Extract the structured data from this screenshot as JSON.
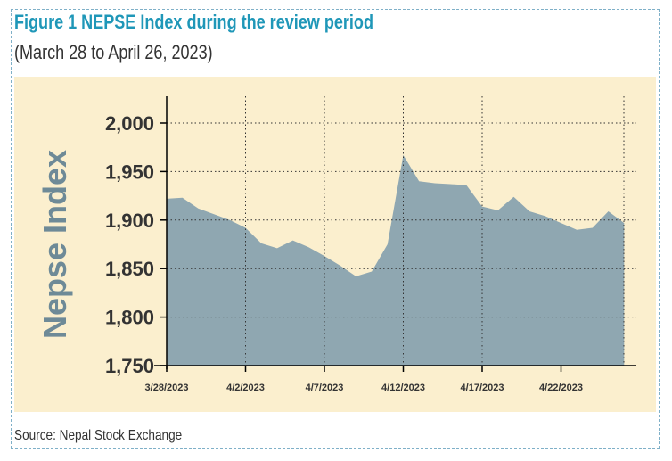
{
  "figure": {
    "title": "Figure 1 NEPSE Index during the review period",
    "subtitle": "(March 28 to April 26, 2023)",
    "source": "Source: Nepal Stock Exchange"
  },
  "colors": {
    "title": "#1f97b8",
    "panel_background": "#fbefce",
    "area_fill": "#8fa7b1",
    "ylabel": "#6e8a97",
    "border": "#7fb0c8"
  },
  "chart_data": {
    "type": "area",
    "ylabel": "Nepse Index",
    "xlabel": "",
    "ylim": [
      1750,
      2000
    ],
    "yticks": [
      1750,
      1800,
      1850,
      1900,
      1950,
      2000
    ],
    "ytick_labels": [
      "1,750",
      "1,800",
      "1,850",
      "1,900",
      "1,950",
      "2,000"
    ],
    "xtick_labels": [
      "3/28/2023",
      "4/2/2023",
      "4/7/2023",
      "4/12/2023",
      "4/17/2023",
      "4/22/2023"
    ],
    "xtick_dates": [
      "2023-03-28",
      "2023-04-02",
      "2023-04-07",
      "2023-04-12",
      "2023-04-17",
      "2023-04-22"
    ],
    "grid": "dotted",
    "series": [
      {
        "x": [
          "2023-03-28",
          "2023-03-29",
          "2023-03-30",
          "2023-03-31",
          "2023-04-01",
          "2023-04-02",
          "2023-04-03",
          "2023-04-04",
          "2023-04-05",
          "2023-04-06",
          "2023-04-07",
          "2023-04-08",
          "2023-04-09",
          "2023-04-10",
          "2023-04-11",
          "2023-04-12",
          "2023-04-13",
          "2023-04-14",
          "2023-04-15",
          "2023-04-16",
          "2023-04-17",
          "2023-04-18",
          "2023-04-19",
          "2023-04-20",
          "2023-04-21",
          "2023-04-22",
          "2023-04-23",
          "2023-04-24",
          "2023-04-25",
          "2023-04-26"
        ],
        "values": [
          1922,
          1923,
          1912,
          1906,
          1900,
          1892,
          1876,
          1871,
          1879,
          1872,
          1863,
          1853,
          1842,
          1847,
          1875,
          1967,
          1940,
          1938,
          1937,
          1936,
          1914,
          1910,
          1924,
          1909,
          1904,
          1897,
          1890,
          1892,
          1909,
          1897
        ]
      }
    ]
  }
}
